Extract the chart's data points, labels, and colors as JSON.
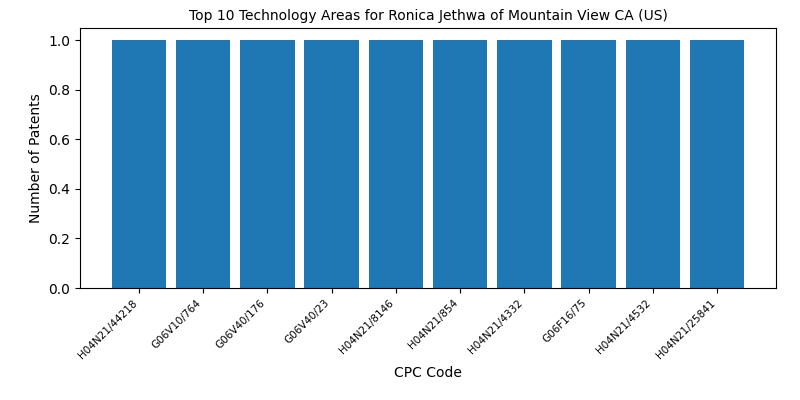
{
  "title": "Top 10 Technology Areas for Ronica Jethwa of Mountain View CA (US)",
  "categories": [
    "H04N21/44218",
    "G06V10/764",
    "G06V40/176",
    "G06V40/23",
    "H04N21/8146",
    "H04N21/854",
    "H04N21/4332",
    "G06F16/75",
    "H04N21/4532",
    "H04N21/25841"
  ],
  "values": [
    1,
    1,
    1,
    1,
    1,
    1,
    1,
    1,
    1,
    1
  ],
  "bar_color": "#1f77b4",
  "xlabel": "CPC Code",
  "ylabel": "Number of Patents",
  "ylim": [
    0,
    1.05
  ],
  "yticks": [
    0.0,
    0.2,
    0.4,
    0.6,
    0.8,
    1.0
  ],
  "figsize": [
    8.0,
    4.0
  ],
  "dpi": 100,
  "bar_width": 0.85,
  "title_fontsize": 10,
  "axis_label_fontsize": 10,
  "tick_fontsize": 7.5
}
